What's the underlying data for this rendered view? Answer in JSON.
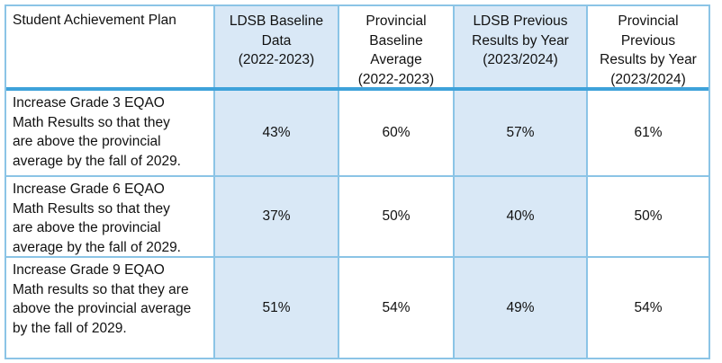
{
  "colors": {
    "cell_fill_blue": "#D9E8F6",
    "grid_border_light_blue": "#8BC4E6",
    "header_separator_blue": "#3EA2DA",
    "text": "#111111",
    "background": "#FFFFFF"
  },
  "table": {
    "name": "Student Achievement Plan EQAO Math Results",
    "columns": [
      {
        "label": "Student Achievement Plan",
        "highlighted": false
      },
      {
        "label": "LDSB Baseline\nData\n(2022-2023)",
        "highlighted": true
      },
      {
        "label": "Provincial\nBaseline\nAverage\n(2022-2023)",
        "highlighted": false
      },
      {
        "label": "LDSB Previous\nResults by Year\n(2023/2024)",
        "highlighted": true
      },
      {
        "label": "Provincial\nPrevious\nResults by Year\n(2023/2024)",
        "highlighted": false
      }
    ],
    "rows": [
      {
        "plan": "Increase Grade 3 EQAO\nMath Results so that they\nare above the provincial\naverage by the fall of 2029.",
        "values": [
          "43%",
          "60%",
          "57%",
          "61%"
        ]
      },
      {
        "plan": "Increase Grade 6 EQAO\nMath Results so that they\nare above the provincial\naverage by the fall of 2029.",
        "values": [
          "37%",
          "50%",
          "40%",
          "50%"
        ]
      },
      {
        "plan": "Increase Grade 9 EQAO\nMath results so that they are\nabove the provincial average\nby the fall of 2029.",
        "values": [
          "51%",
          "54%",
          "49%",
          "54%"
        ]
      }
    ]
  }
}
